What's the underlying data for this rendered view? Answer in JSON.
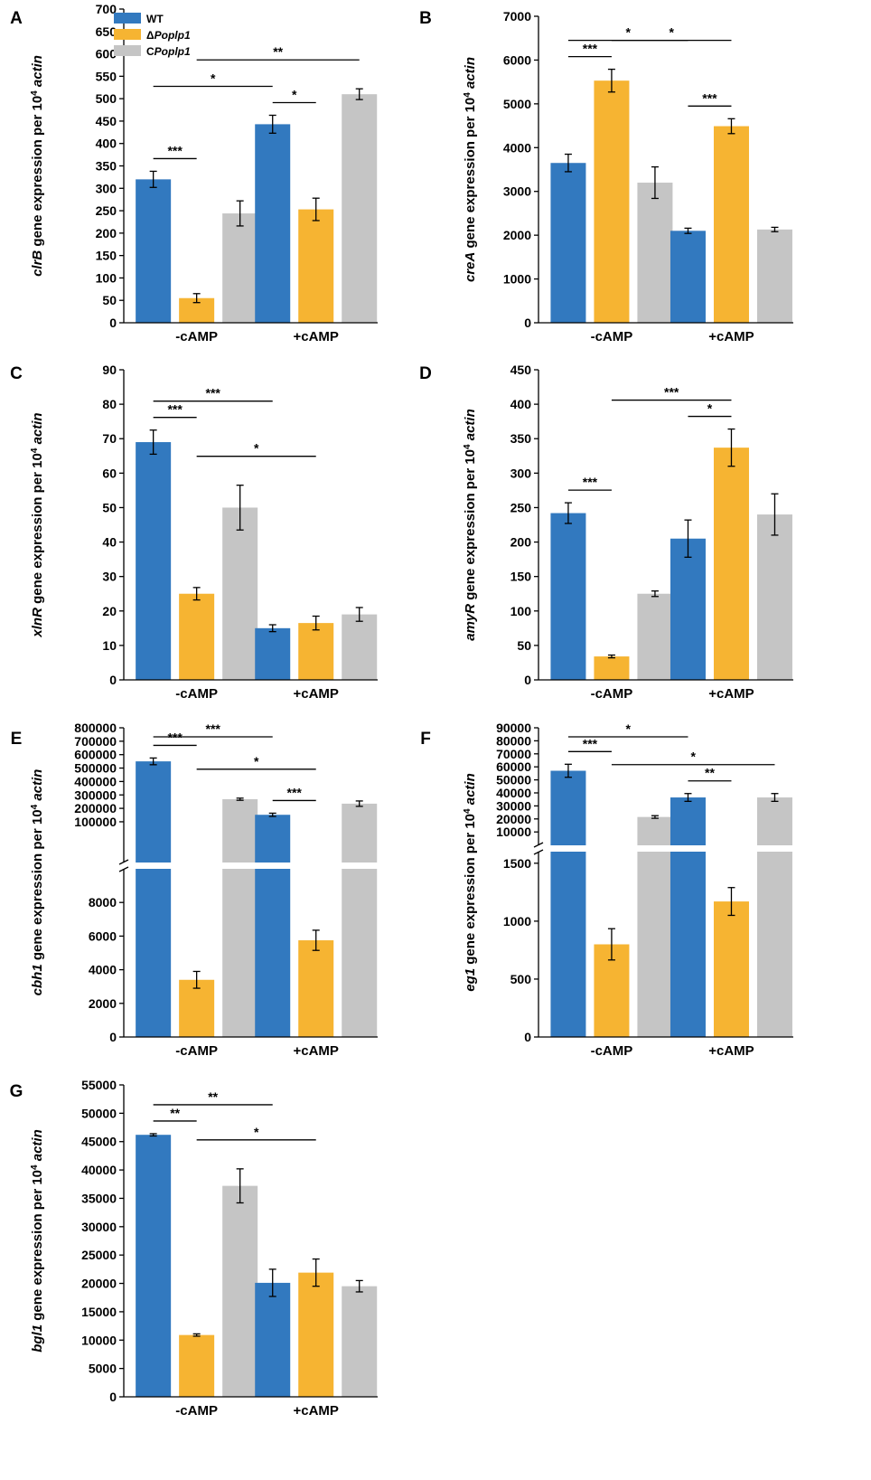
{
  "colors": {
    "wt": "#3279BF",
    "mut": "#F6B432",
    "comp": "#C5C5C5"
  },
  "legend": {
    "wt": {
      "pre": "WT",
      "ital": ""
    },
    "mut": {
      "pre": "Δ",
      "ital": "Poplp1"
    },
    "comp": {
      "pre": "C",
      "ital": "Poplp1"
    }
  },
  "chart_data": [
    {
      "panel": "A",
      "type": "bar",
      "gene": "clrB",
      "ylabel_suffix": " gene expression per 10",
      "ylabel_sup": "4",
      "ylabel_end": " actin",
      "categories": [
        "-cAMP",
        "+cAMP"
      ],
      "series": [
        {
          "name": "WT",
          "values": [
            320,
            443
          ],
          "errors": [
            18,
            20
          ]
        },
        {
          "name": "ΔPoplp1",
          "values": [
            55,
            253
          ],
          "errors": [
            10,
            25
          ]
        },
        {
          "name": "CPoplp1",
          "values": [
            244,
            510
          ],
          "errors": [
            28,
            12
          ]
        }
      ],
      "ylim": [
        0,
        700
      ],
      "yticks": [
        0,
        50,
        100,
        150,
        200,
        250,
        300,
        350,
        400,
        450,
        500,
        550,
        600,
        650,
        700
      ],
      "significance": [
        {
          "from": [
            0,
            0
          ],
          "to": [
            0,
            1
          ],
          "label": "***"
        },
        {
          "from": [
            0,
            0
          ],
          "to": [
            1,
            0
          ],
          "label": "*"
        },
        {
          "from": [
            0,
            1
          ],
          "to": [
            1,
            2
          ],
          "label": "**"
        },
        {
          "from": [
            1,
            0
          ],
          "to": [
            1,
            1
          ],
          "label": "*"
        }
      ]
    },
    {
      "panel": "B",
      "type": "bar",
      "gene": "creA",
      "ylabel_suffix": " gene expression per 10",
      "ylabel_sup": "4",
      "ylabel_end": " actin",
      "categories": [
        "-cAMP",
        "+cAMP"
      ],
      "series": [
        {
          "name": "WT",
          "values": [
            3650,
            2100
          ],
          "errors": [
            200,
            60
          ]
        },
        {
          "name": "ΔPoplp1",
          "values": [
            5530,
            4490
          ],
          "errors": [
            260,
            170
          ]
        },
        {
          "name": "CPoplp1",
          "values": [
            3200,
            2130
          ],
          "errors": [
            360,
            50
          ]
        }
      ],
      "ylim": [
        0,
        7000
      ],
      "yticks": [
        0,
        1000,
        2000,
        3000,
        4000,
        5000,
        6000,
        7000
      ],
      "significance": [
        {
          "from": [
            0,
            0
          ],
          "to": [
            0,
            1
          ],
          "label": "***"
        },
        {
          "from": [
            0,
            0
          ],
          "to": [
            1,
            0
          ],
          "label": "*"
        },
        {
          "from": [
            0,
            1
          ],
          "to": [
            1,
            1
          ],
          "label": "*"
        },
        {
          "from": [
            1,
            0
          ],
          "to": [
            1,
            1
          ],
          "label": "***"
        }
      ]
    },
    {
      "panel": "C",
      "type": "bar",
      "gene": "xlnR",
      "ylabel_suffix": " gene expression per 10",
      "ylabel_sup": "4",
      "ylabel_end": " actin",
      "categories": [
        "-cAMP",
        "+cAMP"
      ],
      "series": [
        {
          "name": "WT",
          "values": [
            69,
            15
          ],
          "errors": [
            3.5,
            1
          ]
        },
        {
          "name": "ΔPoplp1",
          "values": [
            25,
            16.5
          ],
          "errors": [
            1.8,
            2
          ]
        },
        {
          "name": "CPoplp1",
          "values": [
            50,
            19
          ],
          "errors": [
            6.5,
            2
          ]
        }
      ],
      "ylim": [
        0,
        90
      ],
      "yticks": [
        0,
        10,
        20,
        30,
        40,
        50,
        60,
        70,
        80,
        90
      ],
      "significance": [
        {
          "from": [
            0,
            0
          ],
          "to": [
            0,
            1
          ],
          "label": "***"
        },
        {
          "from": [
            0,
            0
          ],
          "to": [
            1,
            0
          ],
          "label": "***"
        },
        {
          "from": [
            0,
            1
          ],
          "to": [
            1,
            1
          ],
          "label": "*"
        }
      ]
    },
    {
      "panel": "D",
      "type": "bar",
      "gene": "amyR",
      "ylabel_suffix": " gene expression per 10",
      "ylabel_sup": "4",
      "ylabel_end": " actin",
      "categories": [
        "-cAMP",
        "+cAMP"
      ],
      "series": [
        {
          "name": "WT",
          "values": [
            242,
            205
          ],
          "errors": [
            15,
            27
          ]
        },
        {
          "name": "ΔPoplp1",
          "values": [
            34,
            337
          ],
          "errors": [
            2,
            27
          ]
        },
        {
          "name": "CPoplp1",
          "values": [
            125,
            240
          ],
          "errors": [
            4,
            30
          ]
        }
      ],
      "ylim": [
        0,
        450
      ],
      "yticks": [
        0,
        50,
        100,
        150,
        200,
        250,
        300,
        350,
        400,
        450
      ],
      "significance": [
        {
          "from": [
            0,
            0
          ],
          "to": [
            0,
            1
          ],
          "label": "***"
        },
        {
          "from": [
            0,
            1
          ],
          "to": [
            1,
            1
          ],
          "label": "***"
        },
        {
          "from": [
            1,
            0
          ],
          "to": [
            1,
            1
          ],
          "label": "*"
        }
      ]
    },
    {
      "panel": "E",
      "type": "bar",
      "gene": "cbh1",
      "ylabel_suffix": " gene expression per 10",
      "ylabel_sup": "4",
      "ylabel_end": " actin",
      "categories": [
        "-cAMP",
        "+cAMP"
      ],
      "series": [
        {
          "name": "WT",
          "values": [
            550000,
            152000
          ],
          "errors": [
            25000,
            12000
          ]
        },
        {
          "name": "ΔPoplp1",
          "values": [
            3400,
            5750
          ],
          "errors": [
            500,
            600
          ]
        },
        {
          "name": "CPoplp1",
          "values": [
            268000,
            235000
          ],
          "errors": [
            8000,
            20000
          ]
        }
      ],
      "broken_axis": {
        "lower": [
          0,
          10000
        ],
        "upper": [
          10000,
          800000
        ]
      },
      "yticks_lower": [
        0,
        2000,
        4000,
        6000,
        8000
      ],
      "yticks_upper": [
        100000,
        200000,
        300000,
        400000,
        500000,
        600000,
        700000,
        800000
      ],
      "significance": [
        {
          "from": [
            0,
            0
          ],
          "to": [
            0,
            1
          ],
          "label": "***"
        },
        {
          "from": [
            0,
            0
          ],
          "to": [
            1,
            0
          ],
          "label": "***"
        },
        {
          "from": [
            0,
            1
          ],
          "to": [
            1,
            1
          ],
          "label": "*"
        },
        {
          "from": [
            1,
            0
          ],
          "to": [
            1,
            1
          ],
          "label": "***"
        }
      ]
    },
    {
      "panel": "F",
      "type": "bar",
      "gene": "eg1",
      "ylabel_suffix": " gene expression per 10",
      "ylabel_sup": "4",
      "ylabel_end": " actin",
      "categories": [
        "-cAMP",
        "+cAMP"
      ],
      "series": [
        {
          "name": "WT",
          "values": [
            57000,
            36500
          ],
          "errors": [
            5000,
            3000
          ]
        },
        {
          "name": "ΔPoplp1",
          "values": [
            800,
            1170
          ],
          "errors": [
            135,
            120
          ]
        },
        {
          "name": "CPoplp1",
          "values": [
            21500,
            36500
          ],
          "errors": [
            1000,
            3000
          ]
        }
      ],
      "broken_axis": {
        "lower": [
          0,
          1600
        ],
        "upper": [
          1600,
          90000
        ]
      },
      "yticks_lower": [
        0,
        500,
        1000,
        1500
      ],
      "yticks_upper": [
        10000,
        20000,
        30000,
        40000,
        50000,
        60000,
        70000,
        80000,
        90000
      ],
      "significance": [
        {
          "from": [
            0,
            0
          ],
          "to": [
            0,
            1
          ],
          "label": "***"
        },
        {
          "from": [
            0,
            0
          ],
          "to": [
            1,
            0
          ],
          "label": "*"
        },
        {
          "from": [
            0,
            1
          ],
          "to": [
            1,
            2
          ],
          "label": "*"
        },
        {
          "from": [
            1,
            0
          ],
          "to": [
            1,
            1
          ],
          "label": "**"
        }
      ]
    },
    {
      "panel": "G",
      "type": "bar",
      "gene": "bgl1",
      "ylabel_suffix": " gene expression per 10",
      "ylabel_sup": "4",
      "ylabel_end": " actin",
      "categories": [
        "-cAMP",
        "+cAMP"
      ],
      "series": [
        {
          "name": "WT",
          "values": [
            46200,
            20100
          ],
          "errors": [
            200,
            2400
          ]
        },
        {
          "name": "ΔPoplp1",
          "values": [
            10900,
            21900
          ],
          "errors": [
            200,
            2400
          ]
        },
        {
          "name": "CPoplp1",
          "values": [
            37200,
            19500
          ],
          "errors": [
            3000,
            1000
          ]
        }
      ],
      "ylim": [
        0,
        55000
      ],
      "yticks": [
        0,
        5000,
        10000,
        15000,
        20000,
        25000,
        30000,
        35000,
        40000,
        45000,
        50000,
        55000
      ],
      "significance": [
        {
          "from": [
            0,
            0
          ],
          "to": [
            0,
            1
          ],
          "label": "**"
        },
        {
          "from": [
            0,
            0
          ],
          "to": [
            1,
            0
          ],
          "label": "**"
        },
        {
          "from": [
            0,
            1
          ],
          "to": [
            1,
            1
          ],
          "label": "*"
        }
      ]
    }
  ]
}
